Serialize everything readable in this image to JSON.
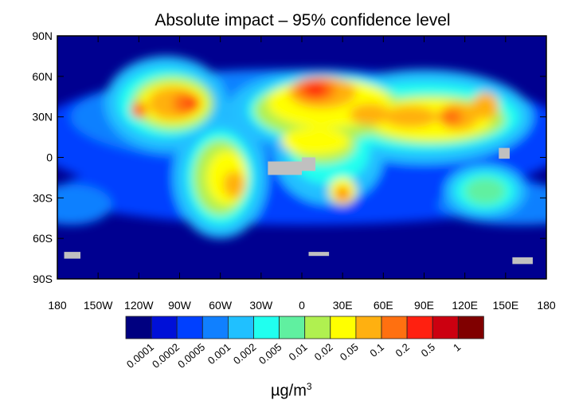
{
  "title": "Absolute impact – 95% confidence level",
  "chart_data": {
    "type": "heatmap",
    "title": "Absolute impact – 95% confidence level",
    "lat_ticks": [
      "90N",
      "60N",
      "30N",
      "0",
      "30S",
      "60S",
      "90S"
    ],
    "lat_values": [
      90,
      60,
      30,
      0,
      -30,
      -60,
      -90
    ],
    "lon_ticks": [
      "180",
      "150W",
      "120W",
      "90W",
      "60W",
      "30W",
      "0",
      "30E",
      "60E",
      "90E",
      "120E",
      "150E",
      "180"
    ],
    "lon_values": [
      -180,
      -150,
      -120,
      -90,
      -60,
      -30,
      0,
      30,
      60,
      90,
      120,
      150,
      180
    ],
    "colorbar": {
      "labels": [
        "0.0001",
        "0.0002",
        "0.0005",
        "0.001",
        "0.002",
        "0.005",
        "0.01",
        "0.02",
        "0.05",
        "0.1",
        "0.2",
        "0.5",
        "1"
      ],
      "colors": [
        "#000080",
        "#0010d8",
        "#0040ff",
        "#1080ff",
        "#20c0ff",
        "#20ffef",
        "#60f0a0",
        "#b0f050",
        "#ffff00",
        "#ffb010",
        "#ff7010",
        "#ff2010",
        "#cc0010",
        "#800000"
      ],
      "unit": "µg/m",
      "unit_exp": "3"
    },
    "missing_color": "#c0c0c0"
  }
}
